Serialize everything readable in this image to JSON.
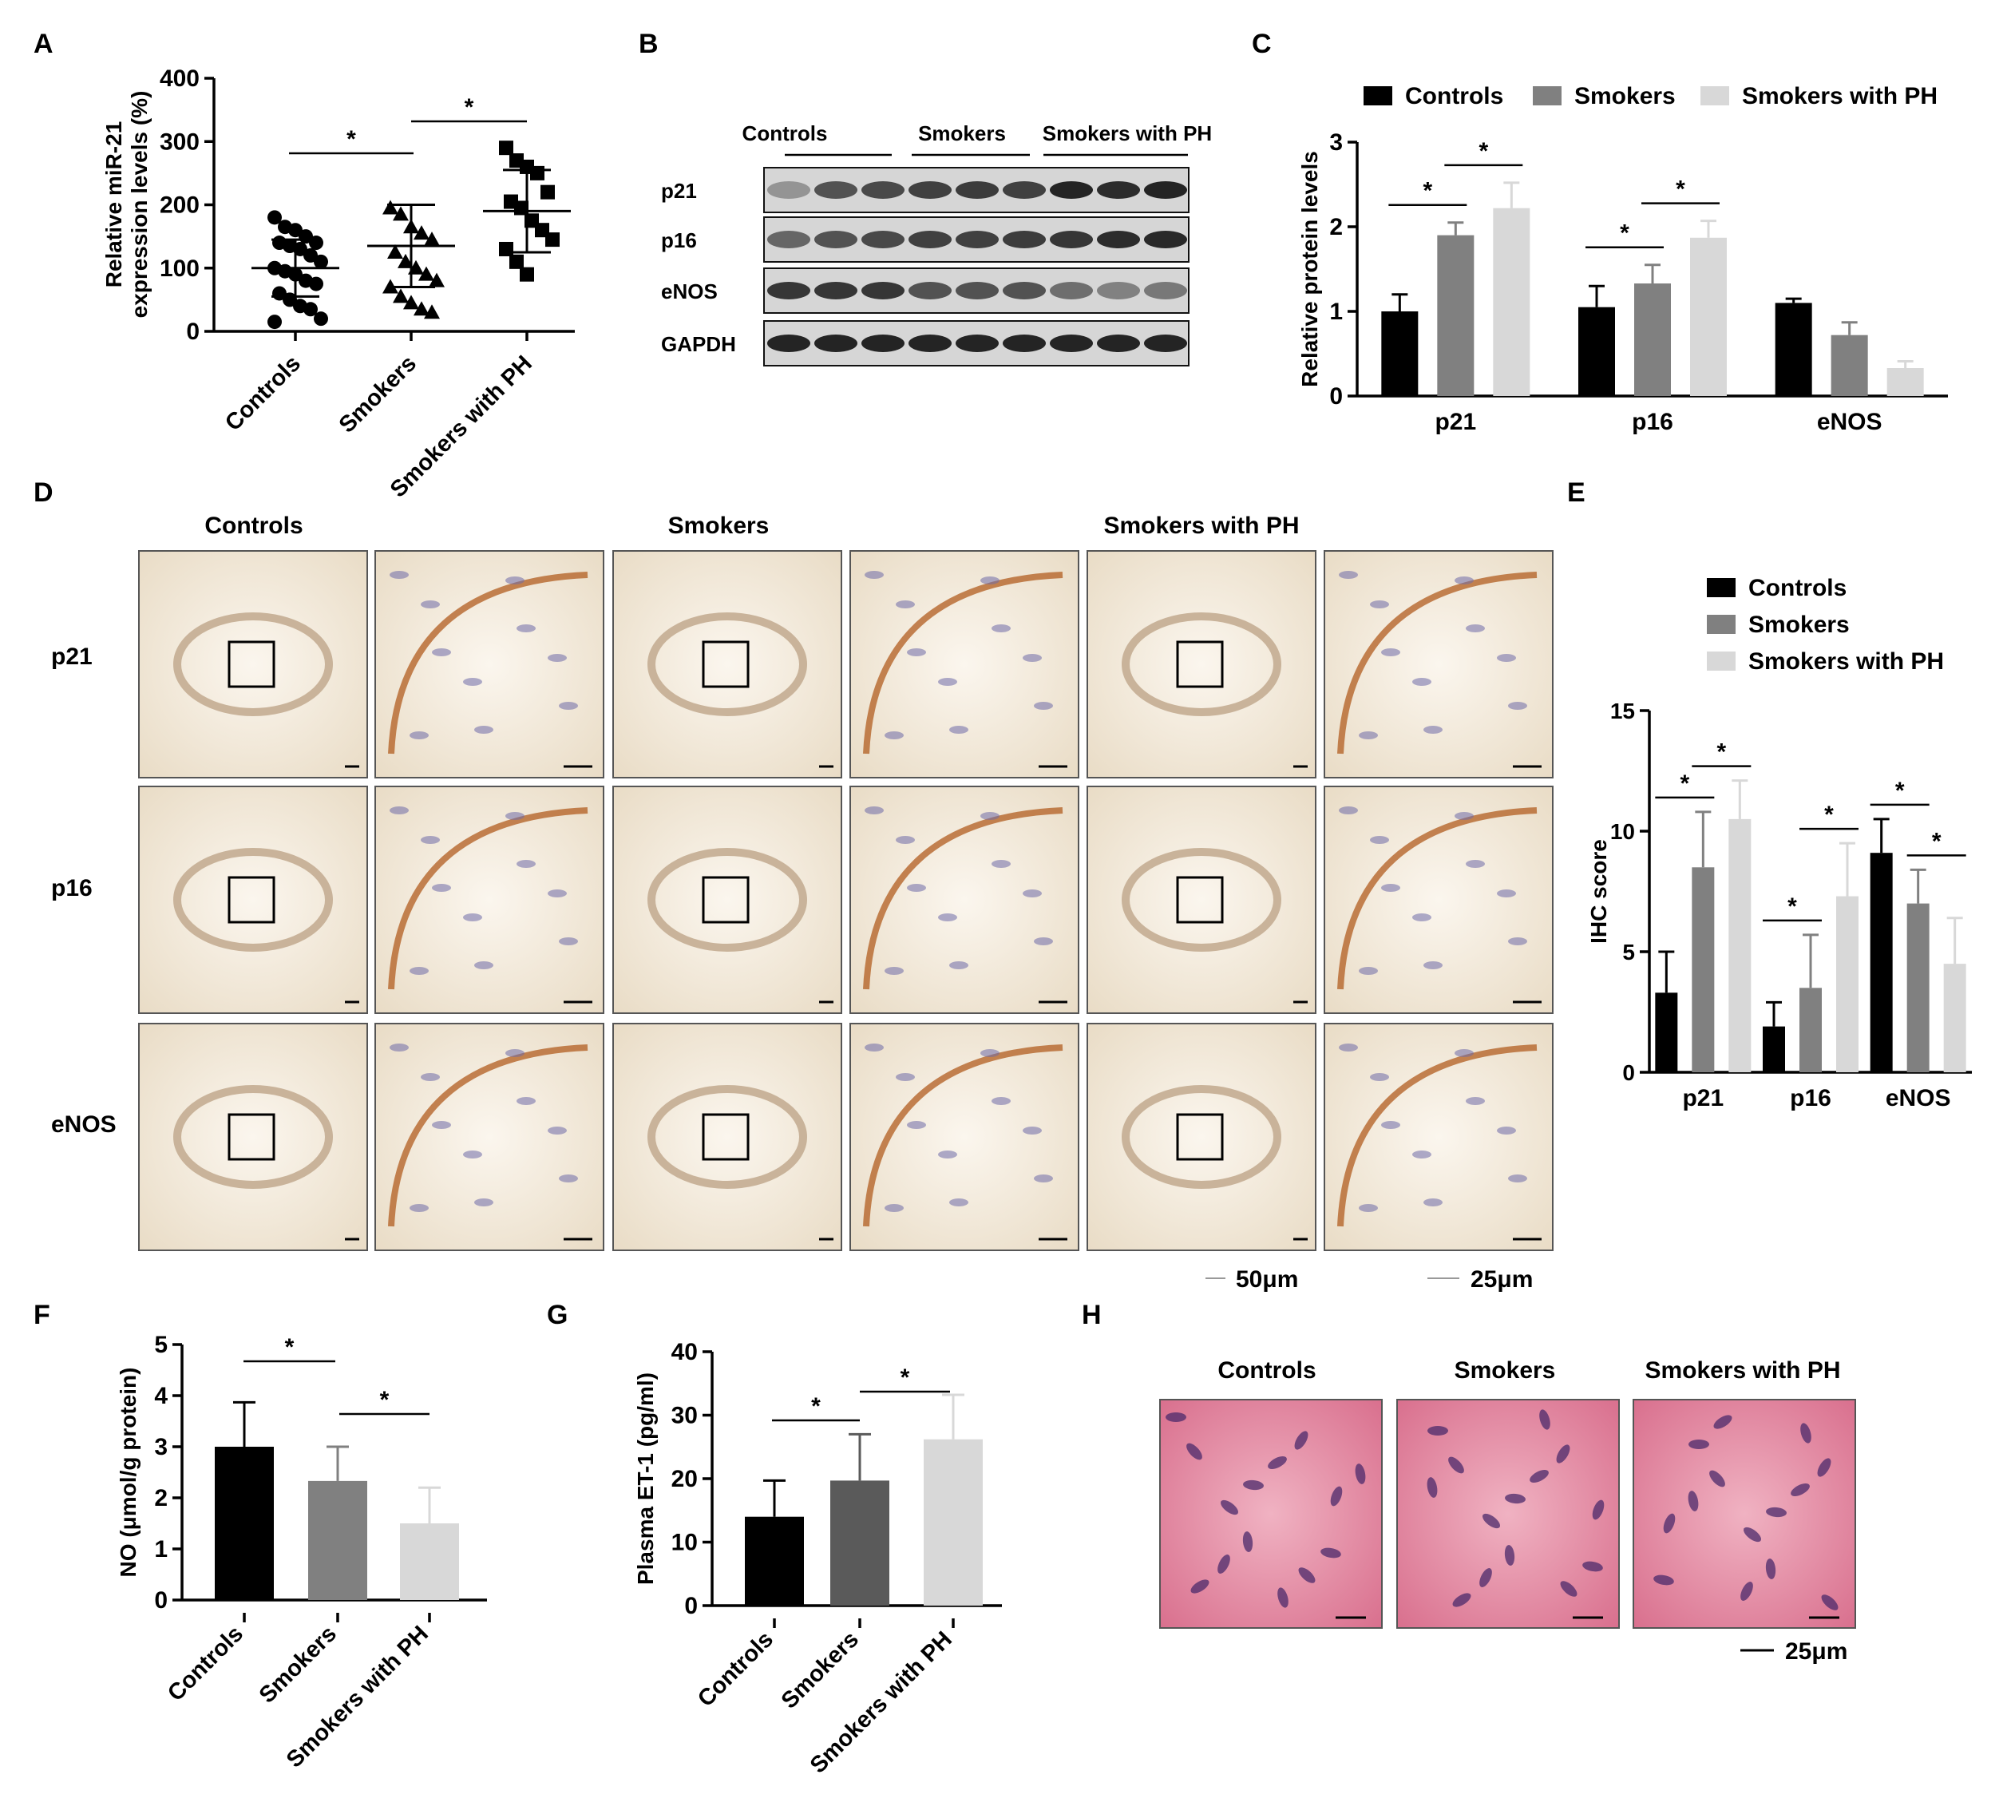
{
  "colors": {
    "controls": "#000000",
    "smokers_dark": "#808080",
    "smokers_g": "#5a5a5a",
    "smokers_with_ph": "#d8d8d8",
    "ihc_tissue": "#f4ecdf",
    "ihc_stain": "#b5652a",
    "he_tissue": "#e690a5",
    "he_nuclei": "#4b2a6b"
  },
  "panel_letters": [
    "A",
    "B",
    "C",
    "D",
    "E",
    "F",
    "G",
    "H"
  ],
  "significance_mark": "*",
  "groups": [
    "Controls",
    "Smokers",
    "Smokers with PH"
  ],
  "blot": {
    "rows": [
      "p21",
      "p16",
      "eNOS",
      "GAPDH"
    ],
    "headers": [
      "Controls",
      "Smokers",
      "Smokers with PH"
    ]
  },
  "ihc": {
    "column_headers": [
      "Controls",
      "Smokers",
      "Smokers with PH"
    ],
    "row_labels": [
      "p21",
      "p16",
      "eNOS"
    ],
    "scale_bars": [
      "50μm",
      "25μm"
    ]
  },
  "he": {
    "column_headers": [
      "Controls",
      "Smokers",
      "Smokers with PH"
    ],
    "scale_bar": "25μm"
  },
  "chart_data": [
    {
      "panel": "A",
      "type": "scatter",
      "ylabel": "Relative miR-21 expression levels (%)",
      "ylabel_lines": [
        "Relative miR-21",
        "expression levels (%)"
      ],
      "categories": [
        "Controls",
        "Smokers",
        "Smokers with PH"
      ],
      "ylim": [
        0,
        400
      ],
      "yticks": [
        0,
        100,
        200,
        300,
        400
      ],
      "markers": [
        "circle",
        "triangle",
        "square"
      ],
      "means": [
        100,
        135,
        190
      ],
      "sd": [
        45,
        65,
        65
      ],
      "points": [
        [
          180,
          165,
          160,
          150,
          140,
          140,
          135,
          130,
          120,
          110,
          100,
          95,
          90,
          80,
          75,
          60,
          50,
          40,
          35,
          20,
          15
        ],
        [
          195,
          185,
          165,
          155,
          145,
          125,
          110,
          100,
          90,
          80,
          70,
          55,
          45,
          35,
          30
        ],
        [
          290,
          270,
          260,
          250,
          220,
          205,
          195,
          175,
          160,
          145,
          130,
          110,
          90
        ]
      ],
      "significance": [
        [
          0,
          1
        ],
        [
          1,
          2
        ]
      ]
    },
    {
      "panel": "C",
      "type": "bar",
      "ylabel": "Relative protein levels",
      "categories": [
        "p21",
        "p16",
        "eNOS"
      ],
      "series": [
        {
          "name": "Controls",
          "values": [
            1.0,
            1.05,
            1.1
          ],
          "errors": [
            0.2,
            0.25,
            0.05
          ]
        },
        {
          "name": "Smokers",
          "values": [
            1.9,
            1.33,
            0.72
          ],
          "errors": [
            0.15,
            0.22,
            0.15
          ]
        },
        {
          "name": "Smokers with PH",
          "values": [
            2.22,
            1.87,
            0.33
          ],
          "errors": [
            0.3,
            0.2,
            0.08
          ]
        }
      ],
      "ylim": [
        0,
        3
      ],
      "yticks": [
        0,
        1,
        2,
        3
      ],
      "legend_position": "top",
      "significance": [
        [
          0,
          0,
          1
        ],
        [
          0,
          1,
          2
        ],
        [
          1,
          0,
          1
        ],
        [
          1,
          1,
          2
        ]
      ]
    },
    {
      "panel": "E",
      "type": "bar",
      "ylabel": "IHC score",
      "categories": [
        "p21",
        "p16",
        "eNOS"
      ],
      "series": [
        {
          "name": "Controls",
          "values": [
            3.3,
            1.9,
            9.1
          ],
          "errors": [
            1.7,
            1.0,
            1.4
          ]
        },
        {
          "name": "Smokers",
          "values": [
            8.5,
            3.5,
            7.0
          ],
          "errors": [
            2.3,
            2.2,
            1.4
          ]
        },
        {
          "name": "Smokers with PH",
          "values": [
            10.5,
            7.3,
            4.5
          ],
          "errors": [
            1.6,
            2.2,
            1.9
          ]
        }
      ],
      "ylim": [
        0,
        15
      ],
      "yticks": [
        0,
        5,
        10,
        15
      ],
      "legend_position": "top",
      "significance": [
        [
          0,
          0,
          1
        ],
        [
          0,
          1,
          2
        ],
        [
          1,
          0,
          1
        ],
        [
          1,
          1,
          2
        ],
        [
          2,
          0,
          1
        ],
        [
          2,
          1,
          2
        ]
      ]
    },
    {
      "panel": "F",
      "type": "bar",
      "ylabel": "NO (μmol/g protein)",
      "categories": [
        "Controls",
        "Smokers",
        "Smokers with PH"
      ],
      "values": [
        3.0,
        2.33,
        1.5
      ],
      "errors": [
        0.87,
        0.67,
        0.7
      ],
      "bar_colors": [
        "#000000",
        "#808080",
        "#d8d8d8"
      ],
      "ylim": [
        0,
        5
      ],
      "yticks": [
        0,
        1,
        2,
        3,
        4,
        5
      ],
      "significance": [
        [
          0,
          1
        ],
        [
          1,
          2
        ]
      ]
    },
    {
      "panel": "G",
      "type": "bar",
      "ylabel": "Plasma ET-1 (pg/ml)",
      "categories": [
        "Controls",
        "Smokers",
        "Smokers with PH"
      ],
      "values": [
        14,
        19.7,
        26.2
      ],
      "errors": [
        5.7,
        7.3,
        7.0
      ],
      "bar_colors": [
        "#000000",
        "#5a5a5a",
        "#d8d8d8"
      ],
      "ylim": [
        0,
        40
      ],
      "yticks": [
        0,
        10,
        20,
        30,
        40
      ],
      "significance": [
        [
          0,
          1
        ],
        [
          1,
          2
        ]
      ]
    }
  ]
}
